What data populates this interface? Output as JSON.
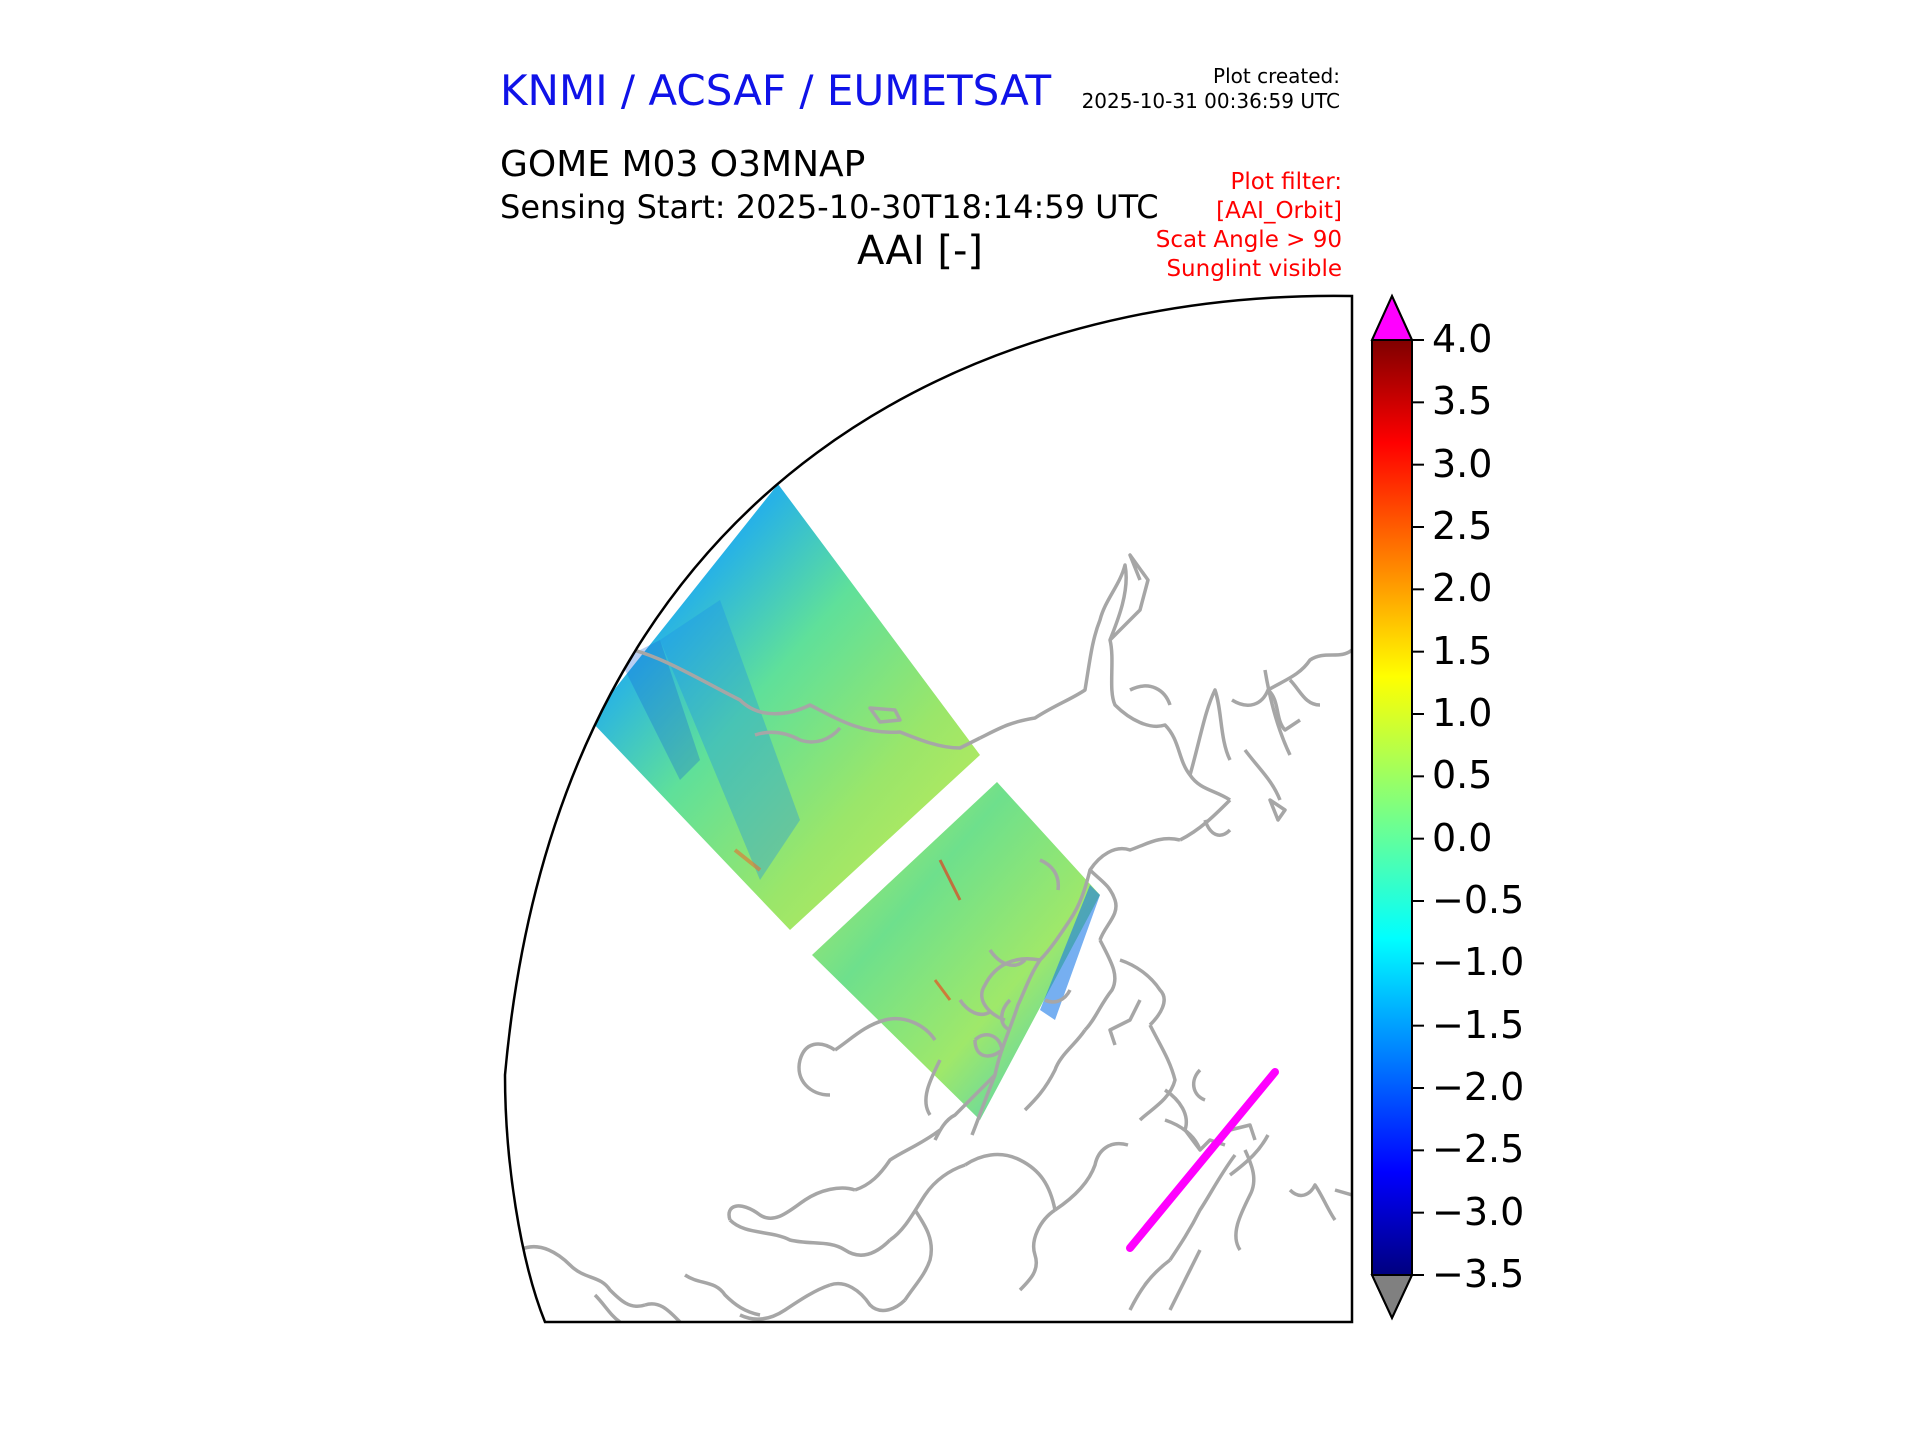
{
  "header": {
    "organization": "KNMI / ACSAF / EUMETSAT",
    "created_label": "Plot created:",
    "created_time": "2025-10-31 00:36:59 UTC",
    "product": "GOME M03 O3MNAP",
    "sensing_start": "Sensing Start: 2025-10-30T18:14:59 UTC",
    "parameter": "AAI [-]",
    "filter_lines": [
      "Plot filter:",
      "[AAI_Orbit]",
      "Scat Angle > 90",
      "Sunglint visible"
    ]
  },
  "colorbar": {
    "ticks": [
      "4.0",
      "3.5",
      "3.0",
      "2.5",
      "2.0",
      "1.5",
      "1.0",
      "0.5",
      "0.0",
      "−0.5",
      "−1.0",
      "−1.5",
      "−2.0",
      "−2.5",
      "−3.0",
      "−3.5"
    ],
    "min": -3.5,
    "max": 4.0,
    "over_color": "#ff00ff",
    "under_color": "#808080",
    "colormap": "jet"
  },
  "map": {
    "coastline_color": "#a6a6a6",
    "sunglint_color": "#ff00ff"
  }
}
